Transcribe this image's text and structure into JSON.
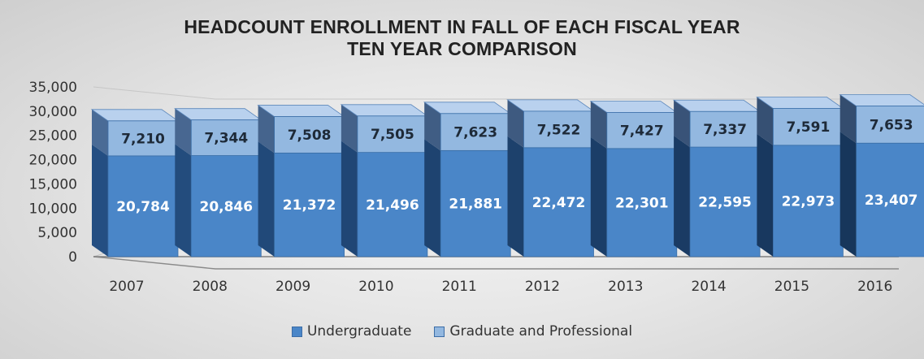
{
  "chart_data": {
    "type": "bar",
    "stacked": true,
    "style": "3d-stacked-column",
    "title": [
      "HEADCOUNT ENROLLMENT IN FALL OF EACH FISCAL YEAR",
      "TEN YEAR COMPARISON"
    ],
    "categories": [
      "2007",
      "2008",
      "2009",
      "2010",
      "2011",
      "2012",
      "2013",
      "2014",
      "2015",
      "2016"
    ],
    "series": [
      {
        "name": "Undergraduate",
        "color": "#4a86c8",
        "values": [
          20784,
          20846,
          21372,
          21496,
          21881,
          22472,
          22301,
          22595,
          22973,
          23407
        ],
        "labels": [
          "20,784",
          "20,846",
          "21,372",
          "21,496",
          "21,881",
          "22,472",
          "22,301",
          "22,595",
          "22,973",
          "23,407"
        ]
      },
      {
        "name": "Graduate and Professional",
        "color": "#93b8e0",
        "values": [
          7210,
          7344,
          7508,
          7505,
          7623,
          7522,
          7427,
          7337,
          7591,
          7653
        ],
        "labels": [
          "7,210",
          "7,344",
          "7,508",
          "7,505",
          "7,623",
          "7,522",
          "7,427",
          "7,337",
          "7,591",
          "7,653"
        ]
      }
    ],
    "ylim": [
      0,
      35000
    ],
    "yticks": [
      0,
      5000,
      10000,
      15000,
      20000,
      25000,
      30000,
      35000
    ],
    "ytick_labels": [
      "0",
      "5,000",
      "10,000",
      "15,000",
      "20,000",
      "25,000",
      "30,000",
      "35,000"
    ],
    "xlabel": "",
    "ylabel": "",
    "grid": true,
    "legend_position": "bottom"
  }
}
